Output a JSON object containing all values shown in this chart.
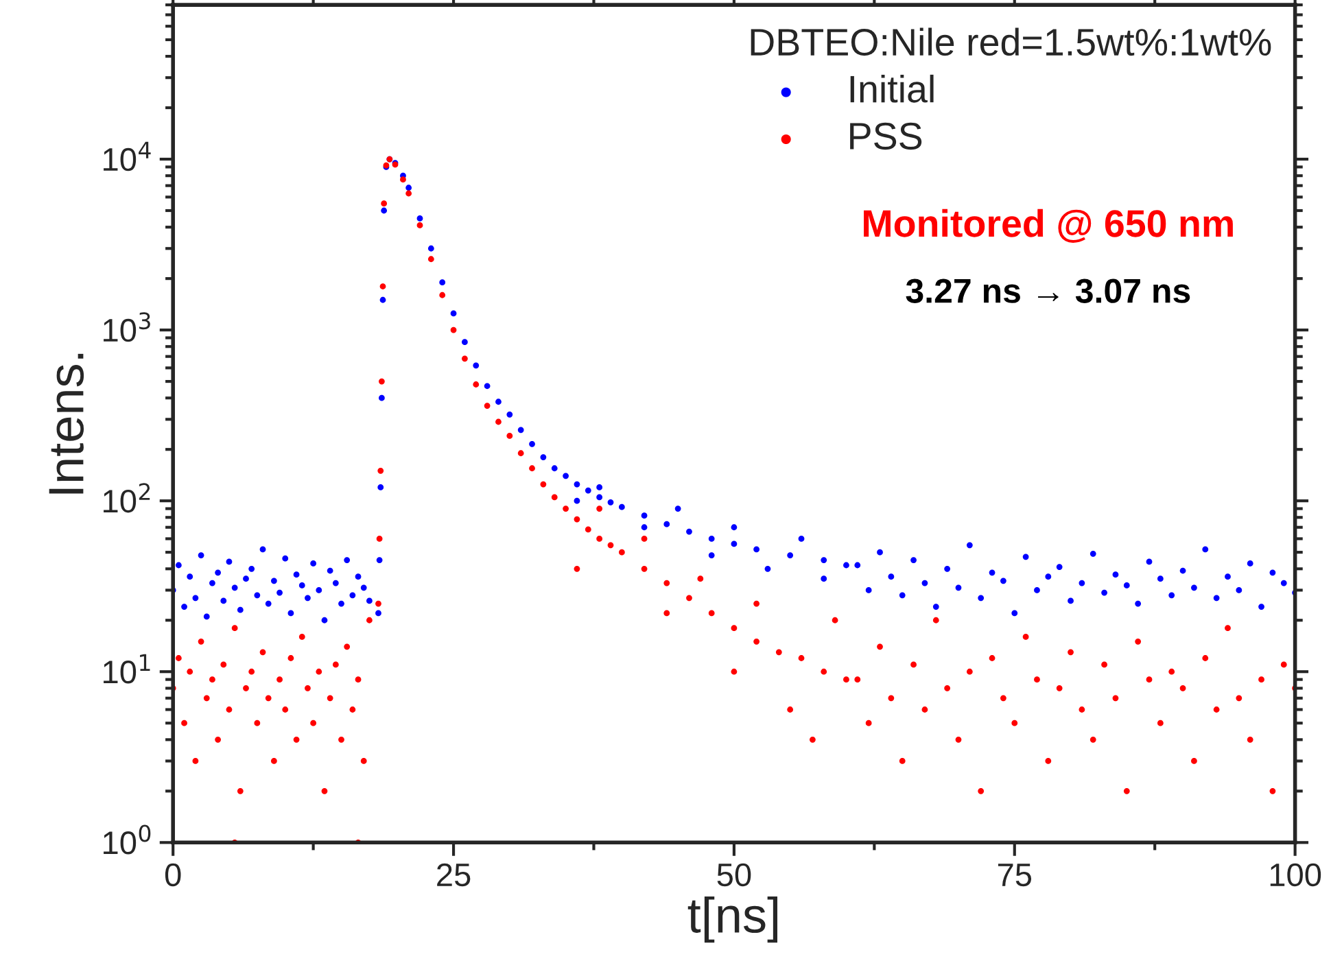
{
  "chart_data": {
    "type": "scatter",
    "xlabel": "t[ns]",
    "ylabel": "Intens.",
    "legend_title": "DBTEO:Nile red=1.5wt%:1wt%",
    "annotations": [
      "Monitored @ 650 nm",
      "3.27 ns → 3.07 ns"
    ],
    "log": "y",
    "xlim": [
      0,
      100
    ],
    "xticks": [
      0,
      25,
      50,
      75,
      100
    ],
    "ylim": [
      1,
      80000
    ],
    "yticks": [
      {
        "value": 1,
        "label": "10$^{0}$"
      },
      {
        "value": 10,
        "label": "10$^{1}$"
      },
      {
        "value": 100,
        "label": "10$^{2}$"
      },
      {
        "value": 1000,
        "label": "10$^{3}$"
      },
      {
        "value": 10000,
        "label": "10$^{4}$"
      }
    ],
    "grid": false,
    "legend": "top right",
    "marker": "circle",
    "series": [
      {
        "name": "Initial",
        "color": "#0000ff",
        "x": [
          0,
          0.5,
          1,
          1.5,
          2,
          2.5,
          3,
          3.5,
          4,
          4.5,
          5,
          5.5,
          6,
          6.5,
          7,
          7.5,
          8,
          8.5,
          9,
          9.5,
          10,
          10.5,
          11,
          11.5,
          12,
          12.5,
          13,
          13.5,
          14,
          14.5,
          15,
          15.5,
          16,
          16.5,
          17,
          17.5,
          18.3,
          18.4,
          18.5,
          18.6,
          18.7,
          18.8,
          19.0,
          19.3,
          19.8,
          20.5,
          21,
          22,
          23,
          24,
          25,
          26,
          27,
          28,
          29,
          30,
          31,
          32,
          33,
          34,
          35,
          36,
          37,
          38,
          39,
          40,
          42,
          44,
          46,
          48,
          50,
          52,
          55,
          58,
          60,
          36,
          38,
          42,
          45,
          48,
          50,
          53,
          56,
          58,
          61,
          62,
          63,
          64,
          65,
          66,
          67,
          68,
          69,
          70,
          71,
          72,
          73,
          74,
          75,
          76,
          77,
          78,
          79,
          80,
          81,
          82,
          83,
          84,
          85,
          86,
          87,
          88,
          89,
          90,
          91,
          92,
          93,
          94,
          95,
          96,
          97,
          98,
          99,
          100
        ],
        "values": [
          30,
          42,
          24,
          36,
          27,
          48,
          21,
          33,
          38,
          26,
          44,
          31,
          23,
          35,
          40,
          28,
          52,
          25,
          34,
          29,
          46,
          22,
          37,
          32,
          27,
          43,
          30,
          20,
          39,
          33,
          25,
          45,
          28,
          36,
          31,
          26,
          22,
          45,
          120,
          400,
          1500,
          5000,
          9000,
          10000,
          9500,
          8000,
          6800,
          4500,
          3000,
          1900,
          1250,
          850,
          620,
          470,
          380,
          320,
          260,
          215,
          180,
          155,
          140,
          125,
          115,
          105,
          98,
          92,
          82,
          73,
          66,
          60,
          56,
          52,
          48,
          45,
          42,
          100,
          120,
          70,
          90,
          48,
          70,
          40,
          60,
          35,
          42,
          30,
          50,
          36,
          28,
          45,
          33,
          24,
          40,
          31,
          55,
          27,
          38,
          34,
          22,
          47,
          30,
          36,
          41,
          26,
          33,
          49,
          29,
          37,
          32,
          25,
          44,
          35,
          28,
          39,
          31,
          52,
          27,
          36,
          30,
          43,
          24,
          38,
          33,
          29
        ]
      },
      {
        "name": "PSS",
        "color": "#ff0000",
        "x": [
          0,
          0.5,
          1,
          1.5,
          2,
          2.5,
          3,
          3.5,
          4,
          4.5,
          5,
          5.5,
          6,
          6.5,
          7,
          7.5,
          8,
          8.5,
          9,
          9.5,
          10,
          10.5,
          11,
          11.5,
          12,
          12.5,
          13,
          13.5,
          14,
          14.5,
          15,
          15.5,
          16,
          16.5,
          17,
          17.5,
          5.5,
          16.5,
          18.3,
          18.4,
          18.5,
          18.6,
          18.7,
          18.8,
          19.0,
          19.3,
          19.8,
          20.5,
          21,
          22,
          23,
          24,
          25,
          26,
          27,
          28,
          29,
          30,
          31,
          32,
          33,
          34,
          35,
          36,
          37,
          38,
          39,
          40,
          42,
          44,
          46,
          48,
          50,
          52,
          54,
          56,
          58,
          60,
          36,
          38,
          42,
          44,
          47,
          50,
          52,
          55,
          57,
          59,
          61,
          62,
          63,
          64,
          65,
          66,
          67,
          68,
          69,
          70,
          71,
          72,
          73,
          74,
          75,
          76,
          77,
          78,
          79,
          80,
          81,
          82,
          83,
          84,
          85,
          86,
          87,
          88,
          89,
          90,
          91,
          92,
          93,
          94,
          95,
          96,
          97,
          98,
          99,
          100
        ],
        "values": [
          8,
          12,
          5,
          10,
          3,
          15,
          7,
          9,
          4,
          11,
          6,
          18,
          2,
          8,
          10,
          5,
          13,
          7,
          3,
          9,
          6,
          12,
          4,
          16,
          8,
          5,
          10,
          2,
          7,
          11,
          4,
          14,
          6,
          9,
          3,
          20,
          1,
          1,
          25,
          60,
          150,
          500,
          1800,
          5500,
          9200,
          10000,
          9300,
          7600,
          6300,
          4100,
          2600,
          1600,
          1000,
          680,
          480,
          360,
          290,
          240,
          190,
          155,
          125,
          105,
          90,
          78,
          68,
          60,
          55,
          50,
          40,
          33,
          27,
          22,
          18,
          15,
          13,
          12,
          10,
          9,
          40,
          90,
          60,
          22,
          35,
          10,
          25,
          6,
          4,
          20,
          9,
          5,
          14,
          7,
          3,
          11,
          6,
          20,
          8,
          4,
          10,
          2,
          12,
          7,
          5,
          16,
          9,
          3,
          8,
          13,
          6,
          4,
          11,
          7,
          2,
          15,
          9,
          5,
          10,
          8,
          3,
          12,
          6,
          18,
          7,
          4,
          9,
          2,
          11,
          8
        ]
      }
    ]
  }
}
